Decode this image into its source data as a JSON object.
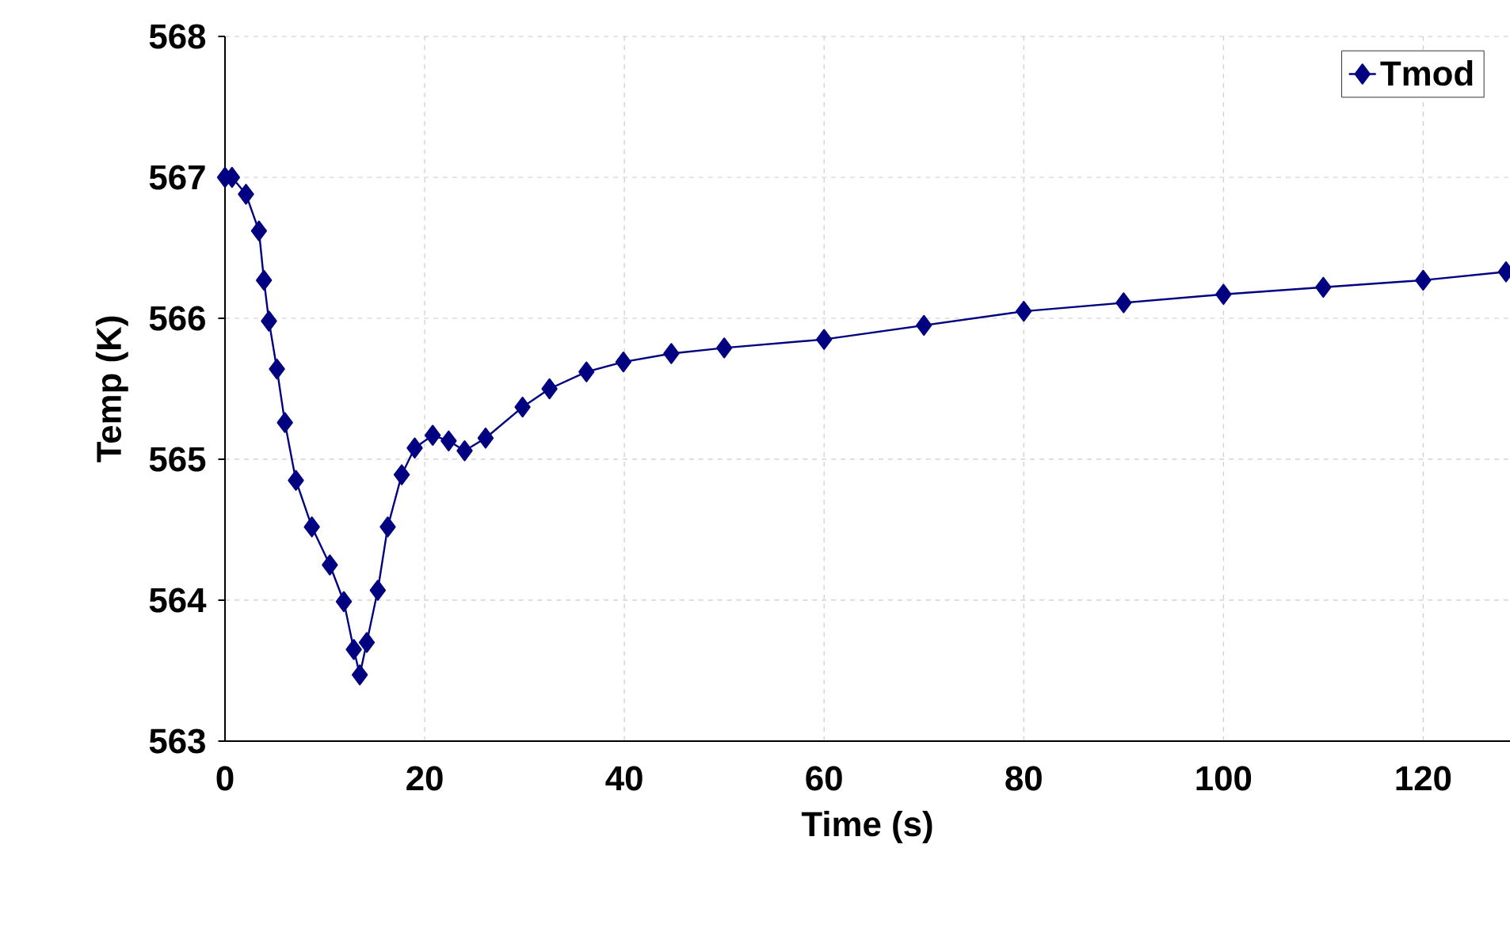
{
  "chart_data": {
    "type": "line",
    "xlabel": "Time (s)",
    "ylabel": "Temp (K)",
    "x": [
      0,
      0.7,
      2.1,
      3.4,
      3.9,
      4.4,
      5.2,
      6.0,
      7.1,
      8.7,
      10.5,
      11.9,
      12.9,
      13.5,
      14.2,
      15.3,
      16.3,
      17.7,
      19.0,
      20.8,
      22.4,
      24.0,
      26.1,
      29.8,
      32.5,
      36.2,
      39.9,
      44.7,
      50,
      60,
      70,
      80,
      90,
      100,
      110,
      120,
      128.3
    ],
    "series": [
      {
        "name": "Tmod",
        "color": "#000080",
        "values": [
          567.0,
          567.0,
          566.88,
          566.62,
          566.27,
          565.98,
          565.64,
          565.26,
          564.85,
          564.52,
          564.25,
          563.99,
          563.65,
          563.47,
          563.7,
          564.07,
          564.52,
          564.89,
          565.08,
          565.17,
          565.13,
          565.06,
          565.15,
          565.37,
          565.5,
          565.62,
          565.69,
          565.75,
          565.79,
          565.85,
          565.95,
          566.05,
          566.11,
          566.17,
          566.22,
          566.27,
          566.33
        ]
      }
    ],
    "xlim": [
      0,
      128.7
    ],
    "ylim": [
      563,
      568
    ],
    "xticks": [
      0,
      20,
      40,
      60,
      80,
      100,
      120
    ],
    "yticks": [
      563,
      564,
      565,
      566,
      567,
      568
    ],
    "grid": true,
    "legend": "top right",
    "marker": "diamond",
    "line_style": "solid"
  }
}
